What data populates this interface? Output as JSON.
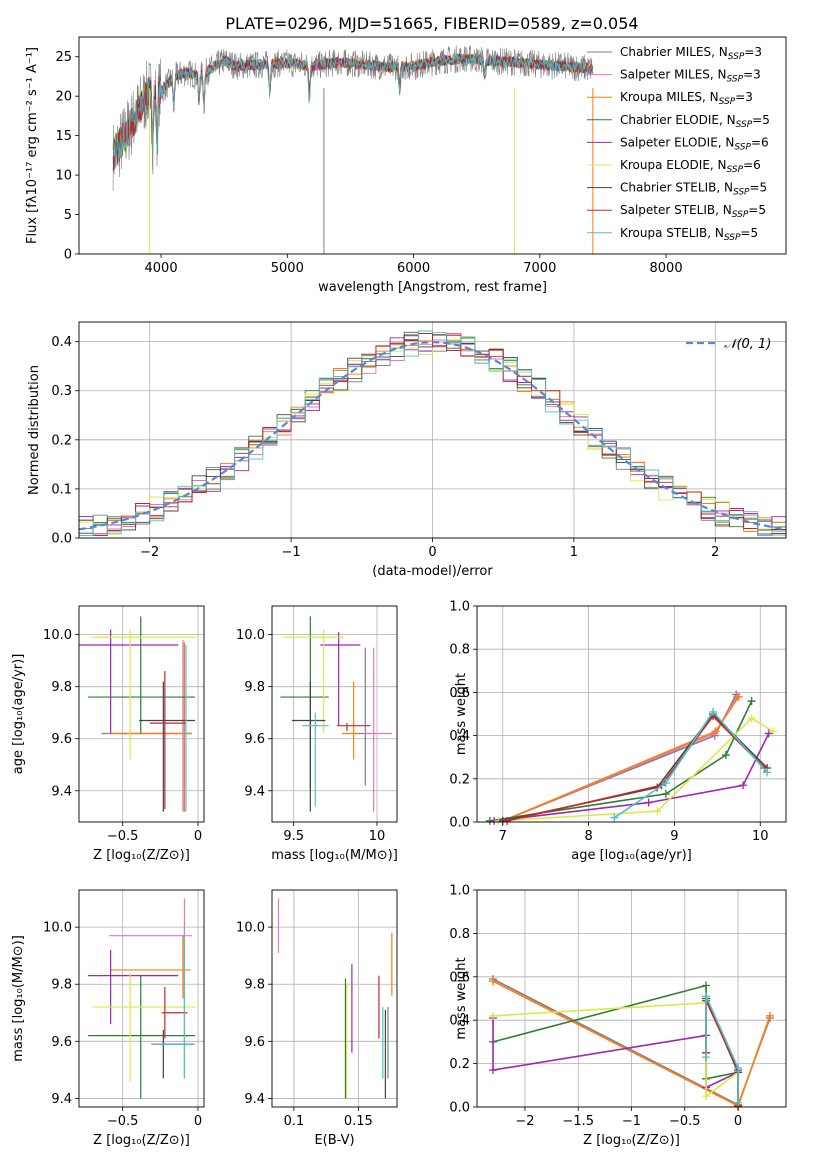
{
  "title": "PLATE=0296, MJD=51665, FIBERID=0589, z=0.054",
  "colors": {
    "chabrier_miles": "#7f7f7f",
    "salpeter_miles": "#e377c2",
    "kroupa_miles": "#ff7f0e",
    "chabrier_elodie": "#2e7d32",
    "salpeter_elodie": "#9c27b0",
    "kroupa_elodie": "#dce84a",
    "chabrier_stelib": "#444444",
    "salpeter_stelib": "#c62828",
    "kroupa_stelib": "#4fc3c7",
    "gaussian": "#5b86d6"
  },
  "chart_data": [
    {
      "id": "spectrum",
      "type": "line",
      "xlabel": "wavelength [Angstrom, rest frame]",
      "ylabel": "Flux [fλ10⁻¹⁷ erg cm⁻² s⁻¹ A⁻¹]",
      "xlim": [
        3350,
        8950
      ],
      "ylim": [
        0,
        27.5
      ],
      "xticks": [
        4000,
        5000,
        6000,
        7000,
        8000
      ],
      "yticks": [
        0,
        5,
        10,
        15,
        20,
        25
      ],
      "legend_placement": "right",
      "legend": [
        {
          "label": "Chabrier MILES, N",
          "sub": "SSP",
          "suffix": "=3",
          "color": "chabrier_miles"
        },
        {
          "label": "Salpeter MILES, N",
          "sub": "SSP",
          "suffix": "=3",
          "color": "salpeter_miles"
        },
        {
          "label": "Kroupa MILES, N",
          "sub": "SSP",
          "suffix": "=3",
          "color": "kroupa_miles"
        },
        {
          "label": "Chabrier ELODIE, N",
          "sub": "SSP",
          "suffix": "=5",
          "color": "chabrier_elodie"
        },
        {
          "label": "Salpeter ELODIE, N",
          "sub": "SSP",
          "suffix": "=6",
          "color": "salpeter_elodie"
        },
        {
          "label": "Kroupa ELODIE, N",
          "sub": "SSP",
          "suffix": "=6",
          "color": "kroupa_elodie"
        },
        {
          "label": "Chabrier STELIB, N",
          "sub": "SSP",
          "suffix": "=5",
          "color": "chabrier_stelib"
        },
        {
          "label": "Salpeter STELIB, N",
          "sub": "SSP",
          "suffix": "=5",
          "color": "salpeter_stelib"
        },
        {
          "label": "Kroupa STELIB, N",
          "sub": "SSP",
          "suffix": "=5",
          "color": "kroupa_stelib"
        }
      ],
      "continuum": {
        "x": [
          3620,
          3700,
          3800,
          3900,
          4000,
          4100,
          4200,
          4300,
          4400,
          4500,
          4600,
          4800,
          5000,
          5200,
          5400,
          5600,
          5800,
          6000,
          6200,
          6400,
          6600,
          6800,
          7000,
          7200,
          7400
        ],
        "y": [
          12.5,
          14.5,
          17.5,
          20.5,
          20.5,
          22.5,
          23.0,
          22.5,
          23.5,
          24.5,
          23.8,
          24.0,
          24.2,
          23.8,
          24.3,
          24.0,
          23.7,
          23.8,
          24.5,
          24.8,
          24.5,
          24.3,
          24.0,
          23.8,
          23.5
        ]
      },
      "gaps": [
        {
          "x": 3910,
          "color": "kroupa_elodie"
        },
        {
          "x": 5290,
          "color": "chabrier_miles"
        },
        {
          "x": 6800,
          "color": "kroupa_elodie"
        },
        {
          "x": 7420,
          "color": "kroupa_miles"
        }
      ]
    },
    {
      "id": "residuals",
      "type": "histogram",
      "xlabel": "(data-model)/error",
      "ylabel": "Normed distribution",
      "xlim": [
        -2.5,
        2.5
      ],
      "ylim": [
        0,
        0.44
      ],
      "xticks": [
        -2,
        -1,
        0,
        1,
        2
      ],
      "yticks": [
        0.0,
        0.1,
        0.2,
        0.3,
        0.4
      ],
      "bin_width": 0.1,
      "legend_placement": "top-right",
      "legend": [
        {
          "label": "𝒩(0, 1)",
          "color": "gaussian",
          "dashed": true
        }
      ],
      "grid": true
    },
    {
      "id": "age_vs_Z",
      "type": "errorbar",
      "xlabel": "Z [log₁₀(Z/Z⊙)]",
      "ylabel": "age  [log₁₀(age/yr)]",
      "xlim": [
        -0.79,
        0.04
      ],
      "ylim": [
        9.28,
        10.11
      ],
      "xticks": [
        -0.5,
        0.0
      ],
      "yticks": [
        9.4,
        9.6,
        9.8,
        10.0
      ],
      "points": [
        {
          "model": "chabrier_miles",
          "x": -0.09,
          "xerr": [
            0.55,
            0.05
          ],
          "y": 9.62,
          "yerr": [
            0.3,
            0.35
          ]
        },
        {
          "model": "salpeter_miles",
          "x": -0.1,
          "xerr": [
            0.5,
            0.05
          ],
          "y": 9.62,
          "yerr": [
            0.3,
            0.36
          ]
        },
        {
          "model": "kroupa_miles",
          "x": -0.09,
          "xerr": [
            0.5,
            0.05
          ],
          "y": 9.62,
          "yerr": [
            0.3,
            0.35
          ]
        },
        {
          "model": "chabrier_elodie",
          "x": -0.38,
          "xerr": [
            0.35,
            0.36
          ],
          "y": 9.76,
          "yerr": [
            0.14,
            0.31
          ]
        },
        {
          "model": "salpeter_elodie",
          "x": -0.58,
          "xerr": [
            0.22,
            0.45
          ],
          "y": 9.96,
          "yerr": [
            0.34,
            0.06
          ]
        },
        {
          "model": "kroupa_elodie",
          "x": -0.45,
          "xerr": [
            0.25,
            0.43
          ],
          "y": 9.99,
          "yerr": [
            0.47,
            0.03
          ]
        },
        {
          "model": "chabrier_stelib",
          "x": -0.23,
          "xerr": [
            0.16,
            0.21
          ],
          "y": 9.67,
          "yerr": [
            0.35,
            0.15
          ]
        },
        {
          "model": "salpeter_stelib",
          "x": -0.22,
          "xerr": [
            0.1,
            0.14
          ],
          "y": 9.66,
          "yerr": [
            0.33,
            0.2
          ]
        },
        {
          "model": "kroupa_stelib",
          "x": -0.08,
          "xerr": [
            0.02,
            0.02
          ],
          "y": 9.62,
          "yerr": [
            0.3,
            0.34
          ]
        }
      ]
    },
    {
      "id": "age_vs_mass",
      "type": "errorbar",
      "xlabel": "mass [log₁₀(M/M⊙)]",
      "ylabel": "",
      "xlim": [
        9.37,
        10.12
      ],
      "ylim": [
        9.28,
        10.11
      ],
      "xticks": [
        9.5,
        10.0
      ],
      "yticks": [
        9.4,
        9.6,
        9.8,
        10.0
      ],
      "points": [
        {
          "model": "chabrier_miles",
          "x": 9.93,
          "xerr": [
            0.07,
            0.03
          ],
          "y": 9.62,
          "yerr": [
            0.2,
            0.33
          ]
        },
        {
          "model": "salpeter_miles",
          "x": 9.98,
          "xerr": [
            0.06,
            0.11
          ],
          "y": 9.62,
          "yerr": [
            0.3,
            0.33
          ]
        },
        {
          "model": "kroupa_miles",
          "x": 9.86,
          "xerr": [
            0.07,
            0.03
          ],
          "y": 9.62,
          "yerr": [
            0.1,
            0.2
          ]
        },
        {
          "model": "chabrier_elodie",
          "x": 9.6,
          "xerr": [
            0.18,
            0.11
          ],
          "y": 9.76,
          "yerr": [
            0.36,
            0.31
          ]
        },
        {
          "model": "salpeter_elodie",
          "x": 9.77,
          "xerr": [
            0.11,
            0.13
          ],
          "y": 9.96,
          "yerr": [
            0.31,
            0.05
          ]
        },
        {
          "model": "kroupa_elodie",
          "x": 9.68,
          "xerr": [
            0.24,
            0.12
          ],
          "y": 9.99,
          "yerr": [
            0.37,
            0.03
          ]
        },
        {
          "model": "chabrier_stelib",
          "x": 9.6,
          "xerr": [
            0.11,
            0.09
          ],
          "y": 9.67,
          "yerr": [
            0.35,
            0.15
          ]
        },
        {
          "model": "salpeter_stelib",
          "x": 9.82,
          "xerr": [
            0.06,
            0.14
          ],
          "y": 9.65,
          "yerr": [
            0.02,
            0.01
          ]
        },
        {
          "model": "kroupa_stelib",
          "x": 9.63,
          "xerr": [
            0.08,
            0.08
          ],
          "y": 9.65,
          "yerr": [
            0.31,
            0.05
          ]
        }
      ]
    },
    {
      "id": "weight_vs_age",
      "type": "line",
      "xlabel": "age  [log₁₀(age/yr)]",
      "ylabel": "mass weight",
      "xlim": [
        6.7,
        10.3
      ],
      "ylim": [
        0,
        1.0
      ],
      "xticks": [
        7,
        8,
        9,
        10
      ],
      "yticks": [
        0.0,
        0.2,
        0.4,
        0.6,
        0.8,
        1.0
      ],
      "grid": true,
      "series": [
        {
          "model": "chabrier_miles",
          "x": [
            7.0,
            9.47,
            9.72
          ],
          "y": [
            0.005,
            0.4,
            0.59
          ]
        },
        {
          "model": "salpeter_miles",
          "x": [
            7.0,
            9.47,
            9.73
          ],
          "y": [
            0.005,
            0.41,
            0.58
          ]
        },
        {
          "model": "kroupa_miles",
          "x": [
            7.0,
            9.48,
            9.75
          ],
          "y": [
            0.005,
            0.42,
            0.58
          ]
        },
        {
          "model": "chabrier_elodie",
          "x": [
            6.85,
            8.9,
            9.6,
            9.9
          ],
          "y": [
            0.005,
            0.13,
            0.31,
            0.56
          ]
        },
        {
          "model": "salpeter_elodie",
          "x": [
            6.9,
            8.7,
            9.8,
            10.1
          ],
          "y": [
            0.005,
            0.09,
            0.17,
            0.41
          ]
        },
        {
          "model": "kroupa_elodie",
          "x": [
            6.95,
            8.8,
            9.9,
            10.15
          ],
          "y": [
            0.005,
            0.05,
            0.48,
            0.42
          ]
        },
        {
          "model": "chabrier_stelib",
          "x": [
            7.0,
            8.8,
            9.45,
            10.08
          ],
          "y": [
            0.005,
            0.16,
            0.5,
            0.25
          ]
        },
        {
          "model": "salpeter_stelib",
          "x": [
            7.05,
            8.85,
            9.45,
            10.05
          ],
          "y": [
            0.005,
            0.17,
            0.49,
            0.25
          ]
        },
        {
          "model": "kroupa_stelib",
          "x": [
            8.3,
            8.9,
            9.45,
            10.08
          ],
          "y": [
            0.02,
            0.18,
            0.51,
            0.23
          ]
        }
      ]
    },
    {
      "id": "mass_vs_Z",
      "type": "errorbar",
      "xlabel": "Z [log₁₀(Z/Z⊙)]",
      "ylabel": "mass [log₁₀(M/M⊙)]",
      "xlim": [
        -0.79,
        0.04
      ],
      "ylim": [
        9.37,
        10.13
      ],
      "xticks": [
        -0.5,
        0.0
      ],
      "yticks": [
        9.4,
        9.6,
        9.8,
        10.0
      ],
      "points": [
        {
          "model": "chabrier_miles",
          "x": -0.09,
          "xerr": [
            0.22,
            0.05
          ],
          "y": 9.59,
          "yerr": [
            0.12,
            0.39
          ]
        },
        {
          "model": "salpeter_miles",
          "x": -0.09,
          "xerr": [
            0.5,
            0.05
          ],
          "y": 9.97,
          "yerr": [
            0.2,
            0.13
          ]
        },
        {
          "model": "kroupa_miles",
          "x": -0.1,
          "xerr": [
            0.48,
            0.05
          ],
          "y": 9.85,
          "yerr": [
            0.1,
            0.12
          ]
        },
        {
          "model": "chabrier_elodie",
          "x": -0.38,
          "xerr": [
            0.35,
            0.36
          ],
          "y": 9.62,
          "yerr": [
            0.22,
            0.21
          ]
        },
        {
          "model": "salpeter_elodie",
          "x": -0.58,
          "xerr": [
            0.15,
            0.45
          ],
          "y": 9.83,
          "yerr": [
            0.17,
            0.09
          ]
        },
        {
          "model": "kroupa_elodie",
          "x": -0.45,
          "xerr": [
            0.25,
            0.43
          ],
          "y": 9.72,
          "yerr": [
            0.26,
            0.12
          ]
        },
        {
          "model": "chabrier_stelib",
          "x": -0.23,
          "xerr": [
            0.02,
            0.2
          ],
          "y": 9.59,
          "yerr": [
            0.12,
            0.05
          ]
        },
        {
          "model": "salpeter_stelib",
          "x": -0.22,
          "xerr": [
            0.02,
            0.15
          ],
          "y": 9.7,
          "yerr": [
            0.09,
            0.09
          ]
        },
        {
          "model": "kroupa_stelib",
          "x": -0.09,
          "xerr": [
            0.16,
            0.07
          ],
          "y": 9.59,
          "yerr": [
            0.12,
            0.39
          ]
        }
      ]
    },
    {
      "id": "mass_vs_ebv",
      "type": "errorbar",
      "xlabel": "E(B-V)",
      "ylabel": "",
      "xlim": [
        0.083,
        0.18
      ],
      "ylim": [
        9.37,
        10.13
      ],
      "xticks": [
        0.1,
        0.15
      ],
      "yticks": [
        9.4,
        9.6,
        9.8,
        10.0
      ],
      "points": [
        {
          "model": "chabrier_miles",
          "x": 0.173,
          "xerr": [
            0,
            0
          ],
          "y": 9.59,
          "yerr": [
            0.12,
            0.13
          ]
        },
        {
          "model": "salpeter_miles",
          "x": 0.088,
          "xerr": [
            0,
            0
          ],
          "y": 9.97,
          "yerr": [
            0.06,
            0.13
          ]
        },
        {
          "model": "kroupa_miles",
          "x": 0.176,
          "xerr": [
            0,
            0
          ],
          "y": 9.85,
          "yerr": [
            0.09,
            0.13
          ]
        },
        {
          "model": "chabrier_elodie",
          "x": 0.14,
          "xerr": [
            0,
            0
          ],
          "y": 9.62,
          "yerr": [
            0.22,
            0.2
          ]
        },
        {
          "model": "salpeter_elodie",
          "x": 0.145,
          "xerr": [
            0,
            0
          ],
          "y": 9.83,
          "yerr": [
            0.27,
            0.04
          ]
        },
        {
          "model": "kroupa_elodie",
          "x": 0.141,
          "xerr": [
            0,
            0
          ],
          "y": 9.72,
          "yerr": [
            0.32,
            0.08
          ]
        },
        {
          "model": "chabrier_stelib",
          "x": 0.171,
          "xerr": [
            0,
            0
          ],
          "y": 9.59,
          "yerr": [
            0.19,
            0.12
          ]
        },
        {
          "model": "salpeter_stelib",
          "x": 0.166,
          "xerr": [
            0,
            0
          ],
          "y": 9.7,
          "yerr": [
            0.09,
            0.13
          ]
        },
        {
          "model": "kroupa_stelib",
          "x": 0.169,
          "xerr": [
            0,
            0
          ],
          "y": 9.59,
          "yerr": [
            0.12,
            0.13
          ]
        }
      ]
    },
    {
      "id": "weight_vs_Z",
      "type": "line",
      "xlabel": "Z [log₁₀(Z/Z⊙)]",
      "ylabel": "mass weight",
      "xlim": [
        -2.45,
        0.45
      ],
      "ylim": [
        0,
        1.0
      ],
      "xticks": [
        -2.0,
        -1.5,
        -1.0,
        -0.5,
        0.0
      ],
      "yticks": [
        0.0,
        0.2,
        0.4,
        0.6,
        0.8,
        1.0
      ],
      "grid": true,
      "series": [
        {
          "model": "chabrier_miles",
          "x": [
            -2.3,
            0.0,
            0.3
          ],
          "y": [
            0.59,
            0.01,
            0.41
          ]
        },
        {
          "model": "salpeter_miles",
          "x": [
            -2.3,
            0.0,
            0.3
          ],
          "y": [
            0.58,
            0.005,
            0.42
          ]
        },
        {
          "model": "kroupa_miles",
          "x": [
            -2.3,
            0.0,
            0.3
          ],
          "y": [
            0.58,
            0.005,
            0.42
          ]
        },
        {
          "model": "chabrier_elodie",
          "x": [
            -2.3,
            -0.3,
            -0.3,
            0.0,
            0.0
          ],
          "y": [
            0.3,
            0.56,
            0.13,
            0.16,
            0.005
          ]
        },
        {
          "model": "salpeter_elodie",
          "x": [
            -2.3,
            -2.3,
            -0.3,
            -0.3,
            0.0,
            0.0
          ],
          "y": [
            0.41,
            0.17,
            0.33,
            0.09,
            0.16,
            0.005
          ]
        },
        {
          "model": "kroupa_elodie",
          "x": [
            -2.3,
            -0.3,
            -0.3,
            0.0,
            0.0
          ],
          "y": [
            0.42,
            0.48,
            0.05,
            0.16,
            0.005
          ]
        },
        {
          "model": "chabrier_stelib",
          "x": [
            -0.3,
            -0.3,
            0.0,
            0.0
          ],
          "y": [
            0.25,
            0.5,
            0.16,
            0.005
          ]
        },
        {
          "model": "salpeter_stelib",
          "x": [
            -0.3,
            -0.3,
            0.0,
            0.0
          ],
          "y": [
            0.25,
            0.49,
            0.17,
            0.005
          ]
        },
        {
          "model": "kroupa_stelib",
          "x": [
            -0.3,
            -0.3,
            0.0,
            0.0
          ],
          "y": [
            0.23,
            0.51,
            0.18,
            0.02
          ]
        }
      ]
    }
  ]
}
